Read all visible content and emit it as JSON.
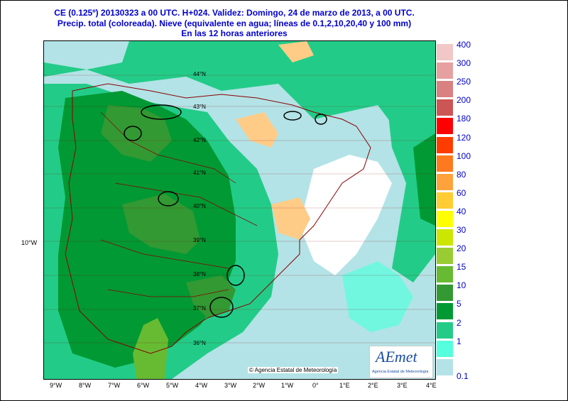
{
  "header": {
    "line1": "CE (0.125º) 20130323 a 00 UTC.  H+024. Validez: Domingo, 24 de marzo de 2013,  a  00 UTC.",
    "line2": "Precip. total (coloreada). Nieve (equivalente en agua; líneas de 0.1,2,10,20,40 y 100 mm)",
    "line3": "En las 12 horas anteriores"
  },
  "map": {
    "latitudes": [
      "44°N",
      "43°N",
      "42°N",
      "41°N",
      "40°N",
      "39°N",
      "38°N",
      "37°N",
      "36°N"
    ],
    "longitudes": [
      "9°W",
      "8°W",
      "7°W",
      "6°W",
      "5°W",
      "4°W",
      "3°W",
      "2°W",
      "1°W",
      "0°",
      "1°E",
      "2°E",
      "3°E",
      "4°E"
    ],
    "side_longitude": "10°W",
    "copyright": "© Agencia Estatal de Meteorología"
  },
  "legend": {
    "labels": [
      "400",
      "300",
      "250",
      "200",
      "180",
      "120",
      "100",
      "80",
      "60",
      "40",
      "30",
      "20",
      "15",
      "10",
      "5",
      "2",
      "1",
      "0.1"
    ],
    "colors": [
      "#f2c7c7",
      "#e7a0a0",
      "#d98080",
      "#cc5555",
      "#ff0000",
      "#ff3c00",
      "#ff7a1e",
      "#ffa23c",
      "#ffcc33",
      "#ffff00",
      "#cce600",
      "#99cc33",
      "#66bb33",
      "#339933",
      "#009933",
      "#22cc88",
      "#55ffdd",
      "#b3e3e6"
    ]
  },
  "logo": {
    "text": "AEmet",
    "subtitle": "Agencia Estatal de Meteorología"
  }
}
